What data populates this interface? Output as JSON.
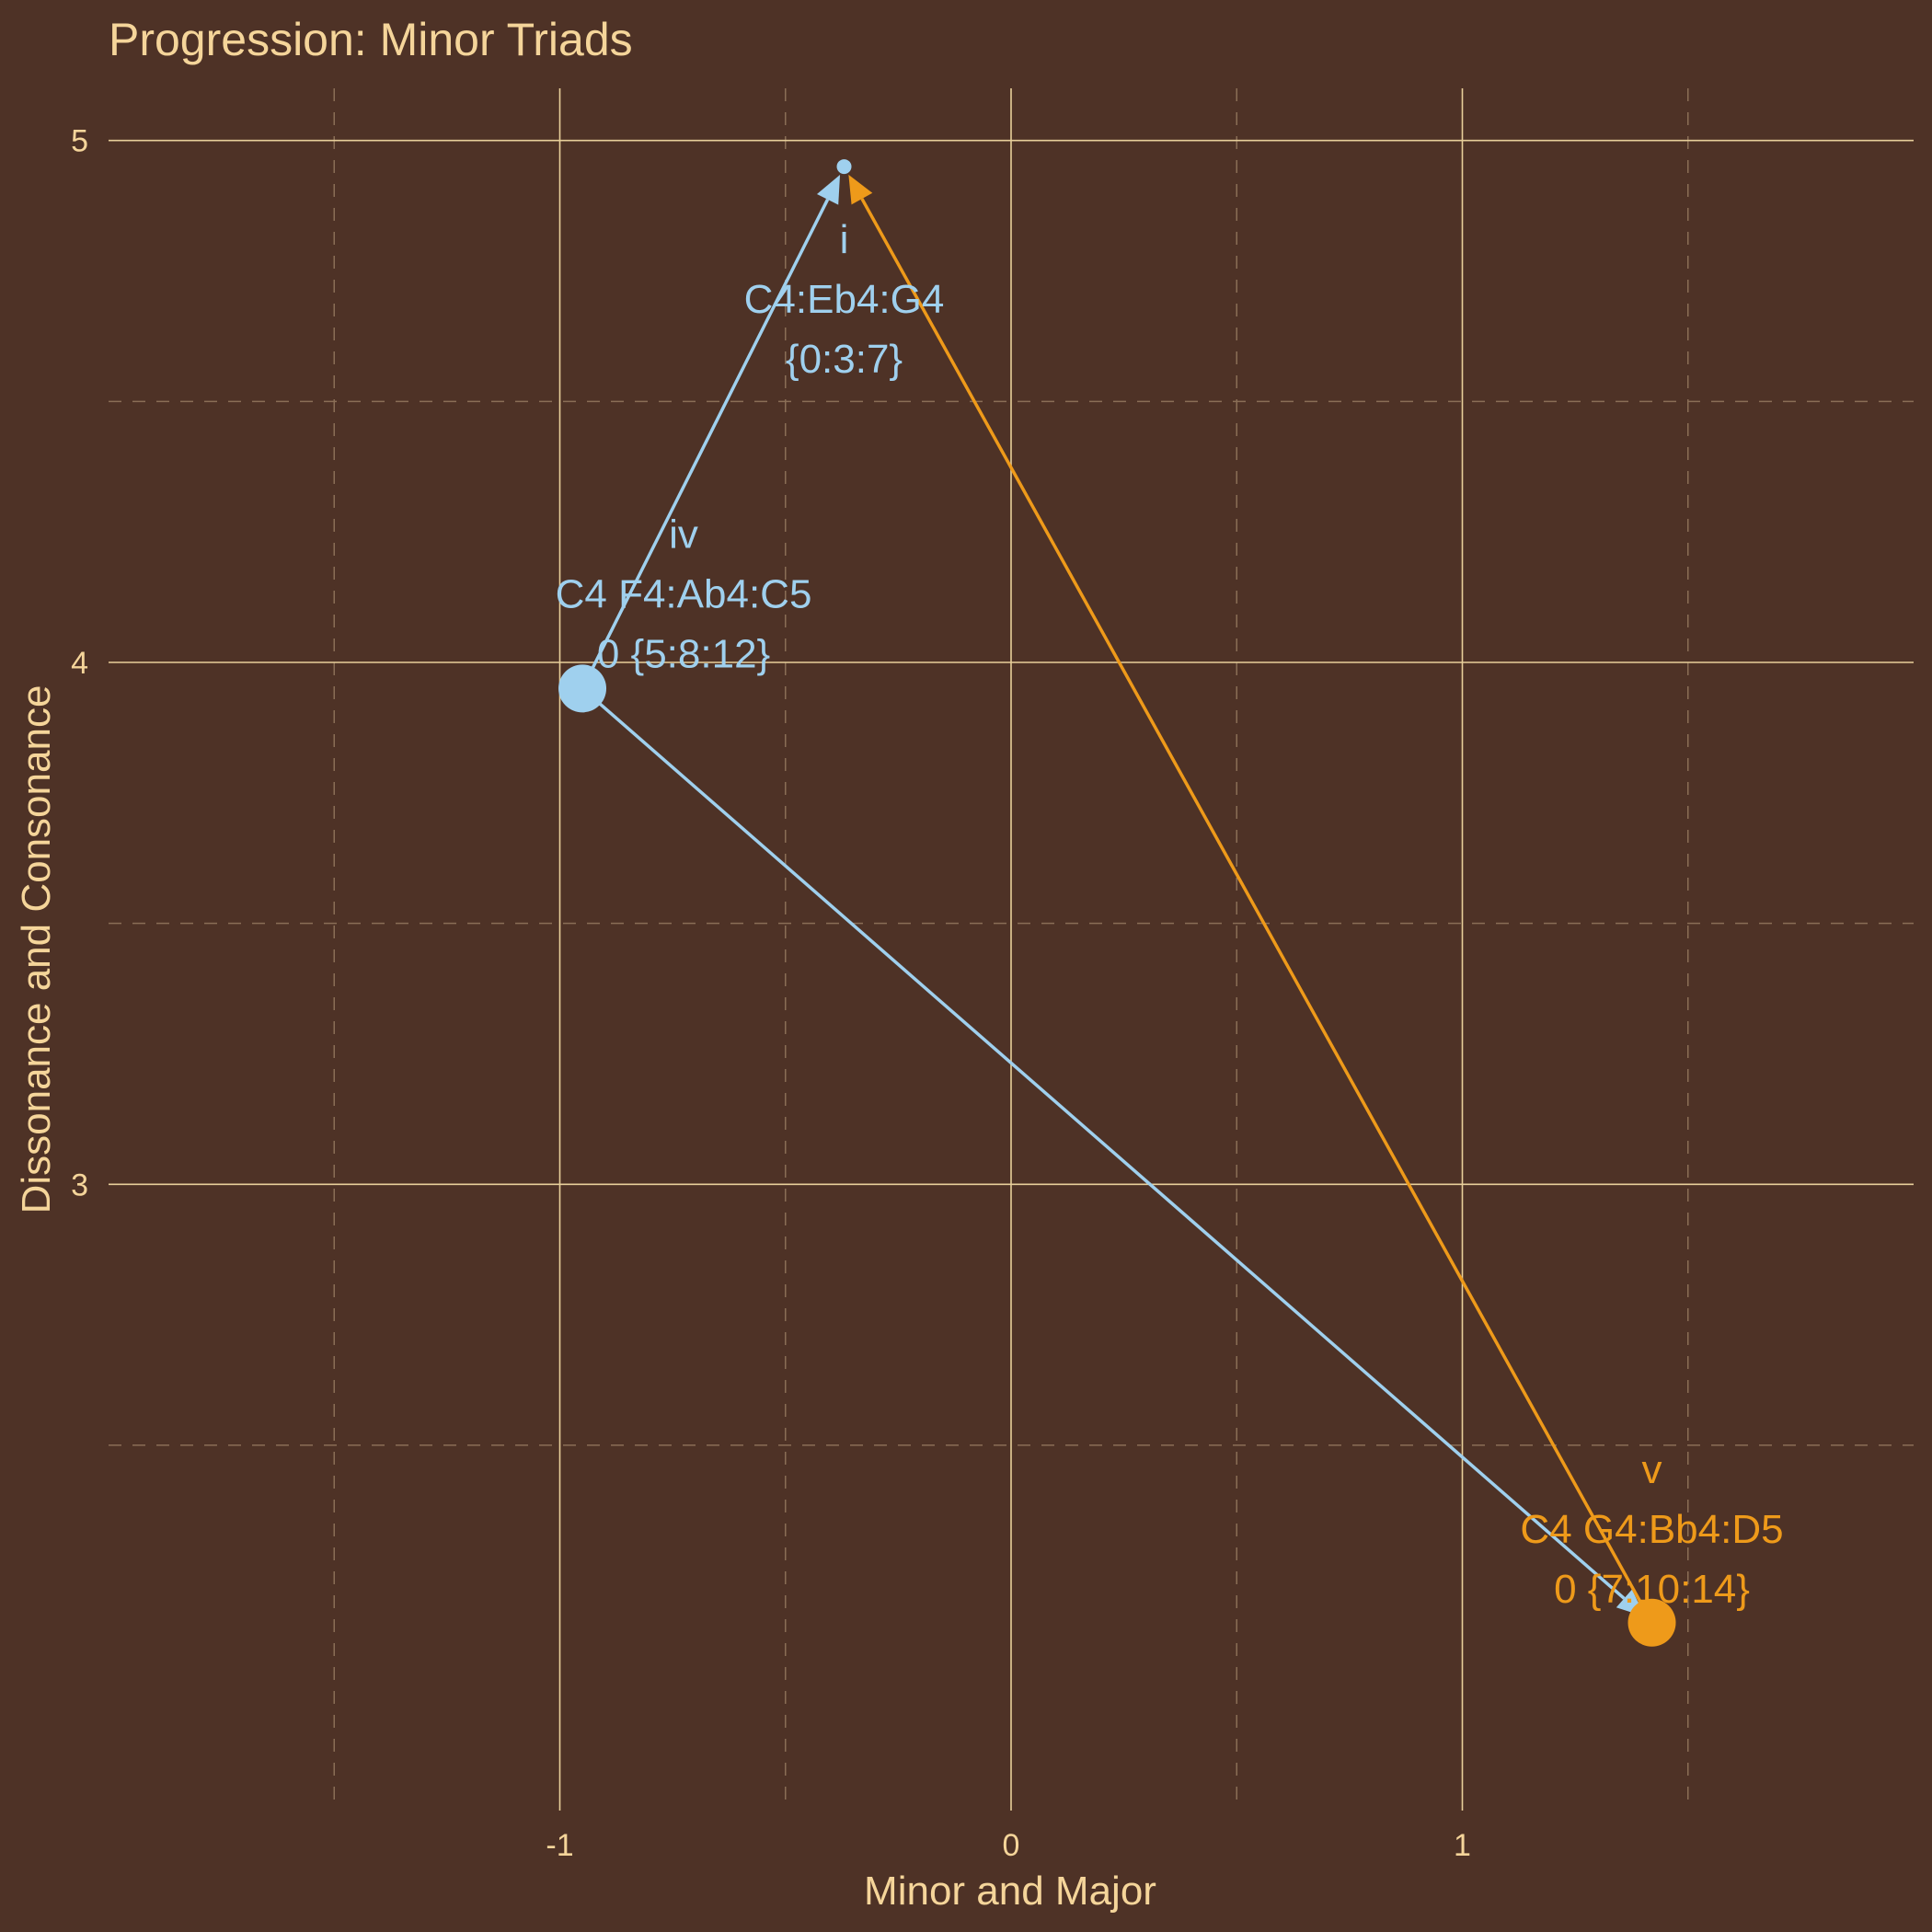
{
  "colors": {
    "background": "#4e3226",
    "text": "#f5d59a",
    "grid_major": "#e8cf9a",
    "grid_minor": "#8a6e56",
    "minor_chord": "#9fd0ee",
    "major_chord": "#ee9a1a"
  },
  "chart_data": {
    "type": "scatter",
    "title": "Progression: Minor Triads",
    "xlabel": "Minor and Major",
    "ylabel": "Dissonance and Consonance",
    "xlim": [
      -2.0,
      2.0
    ],
    "ylim": [
      1.8,
      5.1
    ],
    "x_ticks": [
      -1,
      0,
      1
    ],
    "x_tick_labels": [
      "-1",
      "0",
      "1"
    ],
    "y_ticks": [
      3,
      4,
      5
    ],
    "y_tick_labels": [
      "3",
      "4",
      "5"
    ],
    "grid": true,
    "points": [
      {
        "id": "i",
        "x": -0.37,
        "y": 4.95,
        "size": "small",
        "color": "minor_chord",
        "label_lines": [
          "i",
          "C4:Eb4:G4",
          "{0:3:7}"
        ]
      },
      {
        "id": "iv",
        "x": -0.95,
        "y": 3.95,
        "size": "large",
        "color": "minor_chord",
        "label_lines": [
          "iv",
          "C4 F4:Ab4:C5",
          "0 {5:8:12}"
        ]
      },
      {
        "id": "v",
        "x": 1.42,
        "y": 2.16,
        "size": "large",
        "color": "major_chord",
        "label_lines": [
          "v",
          "C4 G4:Bb4:D5",
          "0 {7:10:14}"
        ]
      }
    ],
    "arrows": [
      {
        "from": "iv",
        "to": "i",
        "color": "minor_chord"
      },
      {
        "from": "iv",
        "to": "v",
        "color": "minor_chord"
      },
      {
        "from": "v",
        "to": "i",
        "color": "major_chord"
      }
    ]
  }
}
